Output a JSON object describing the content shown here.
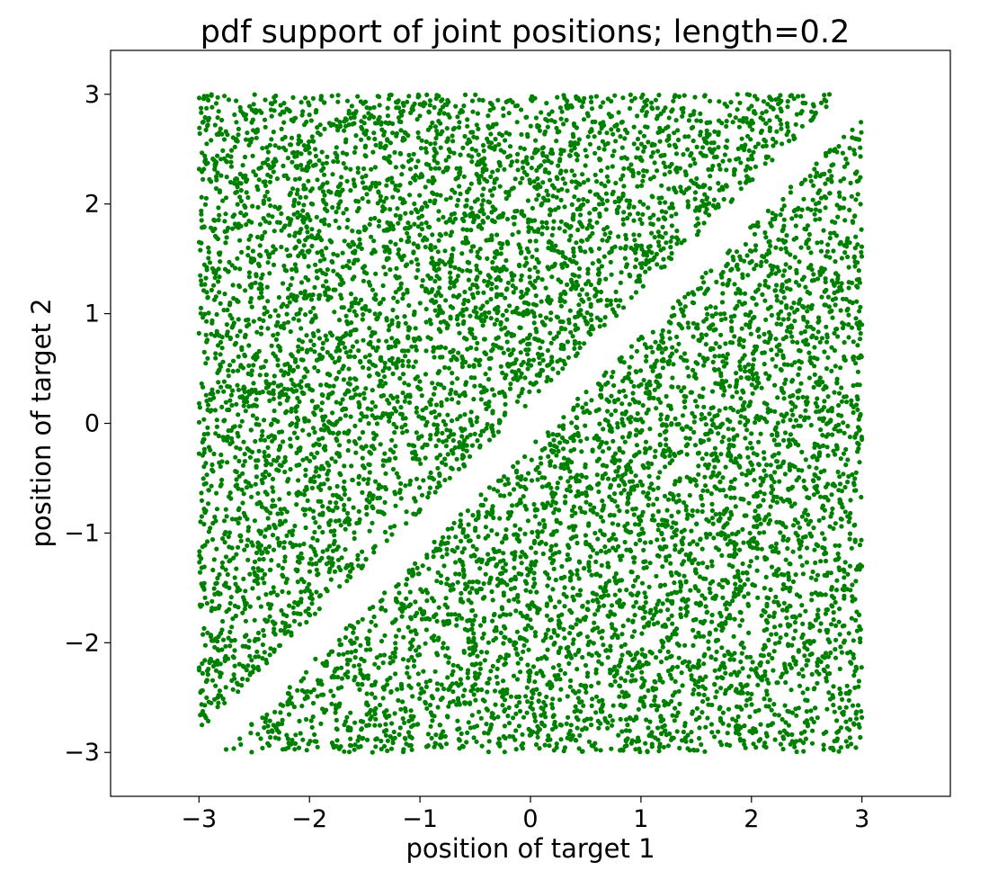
{
  "chart_data": {
    "type": "scatter",
    "title": "pdf support of joint positions; length=0.2",
    "xlabel": "position of target 1",
    "ylabel": "position of target 2",
    "xlim": [
      -3.8,
      3.8
    ],
    "ylim": [
      -3.4,
      3.4
    ],
    "xticks": [
      -3,
      -2,
      -1,
      0,
      1,
      2,
      3
    ],
    "yticks": [
      -3,
      -2,
      -1,
      0,
      1,
      2,
      3
    ],
    "tick_labels_x": [
      "−3",
      "−2",
      "−1",
      "0",
      "1",
      "2",
      "3"
    ],
    "tick_labels_y": [
      "−3",
      "−2",
      "−1",
      "0",
      "1",
      "2",
      "3"
    ],
    "grid": false,
    "series": [
      {
        "color": "#008000",
        "sampling": {
          "x_range": [
            -3,
            3
          ],
          "y_range": [
            -3,
            3
          ],
          "excluded_band_min_abs_difference": 0.2,
          "sample_count": 9000
        }
      }
    ]
  }
}
